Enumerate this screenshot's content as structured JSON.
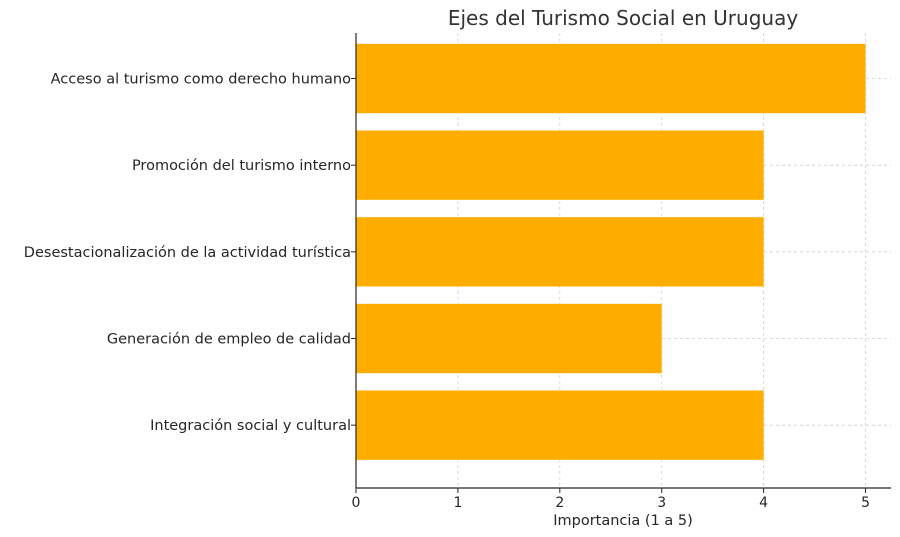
{
  "chart_data": {
    "type": "bar",
    "orientation": "horizontal",
    "title": "Ejes del Turismo Social en Uruguay",
    "xlabel": "Importancia (1 a 5)",
    "ylabel": "",
    "categories": [
      "Acceso al turismo como derecho humano",
      "Promoción del turismo interno",
      "Desestacionalización de la actividad turística",
      "Generación de empleo de calidad",
      "Integración social y cultural"
    ],
    "values": [
      5,
      4,
      4,
      3,
      4
    ],
    "xlim": [
      0,
      5.25
    ],
    "xticks": [
      "0",
      "1",
      "2",
      "3",
      "4",
      "5"
    ],
    "grid": true,
    "legend": "none",
    "bar_color": "#FFAE00"
  }
}
